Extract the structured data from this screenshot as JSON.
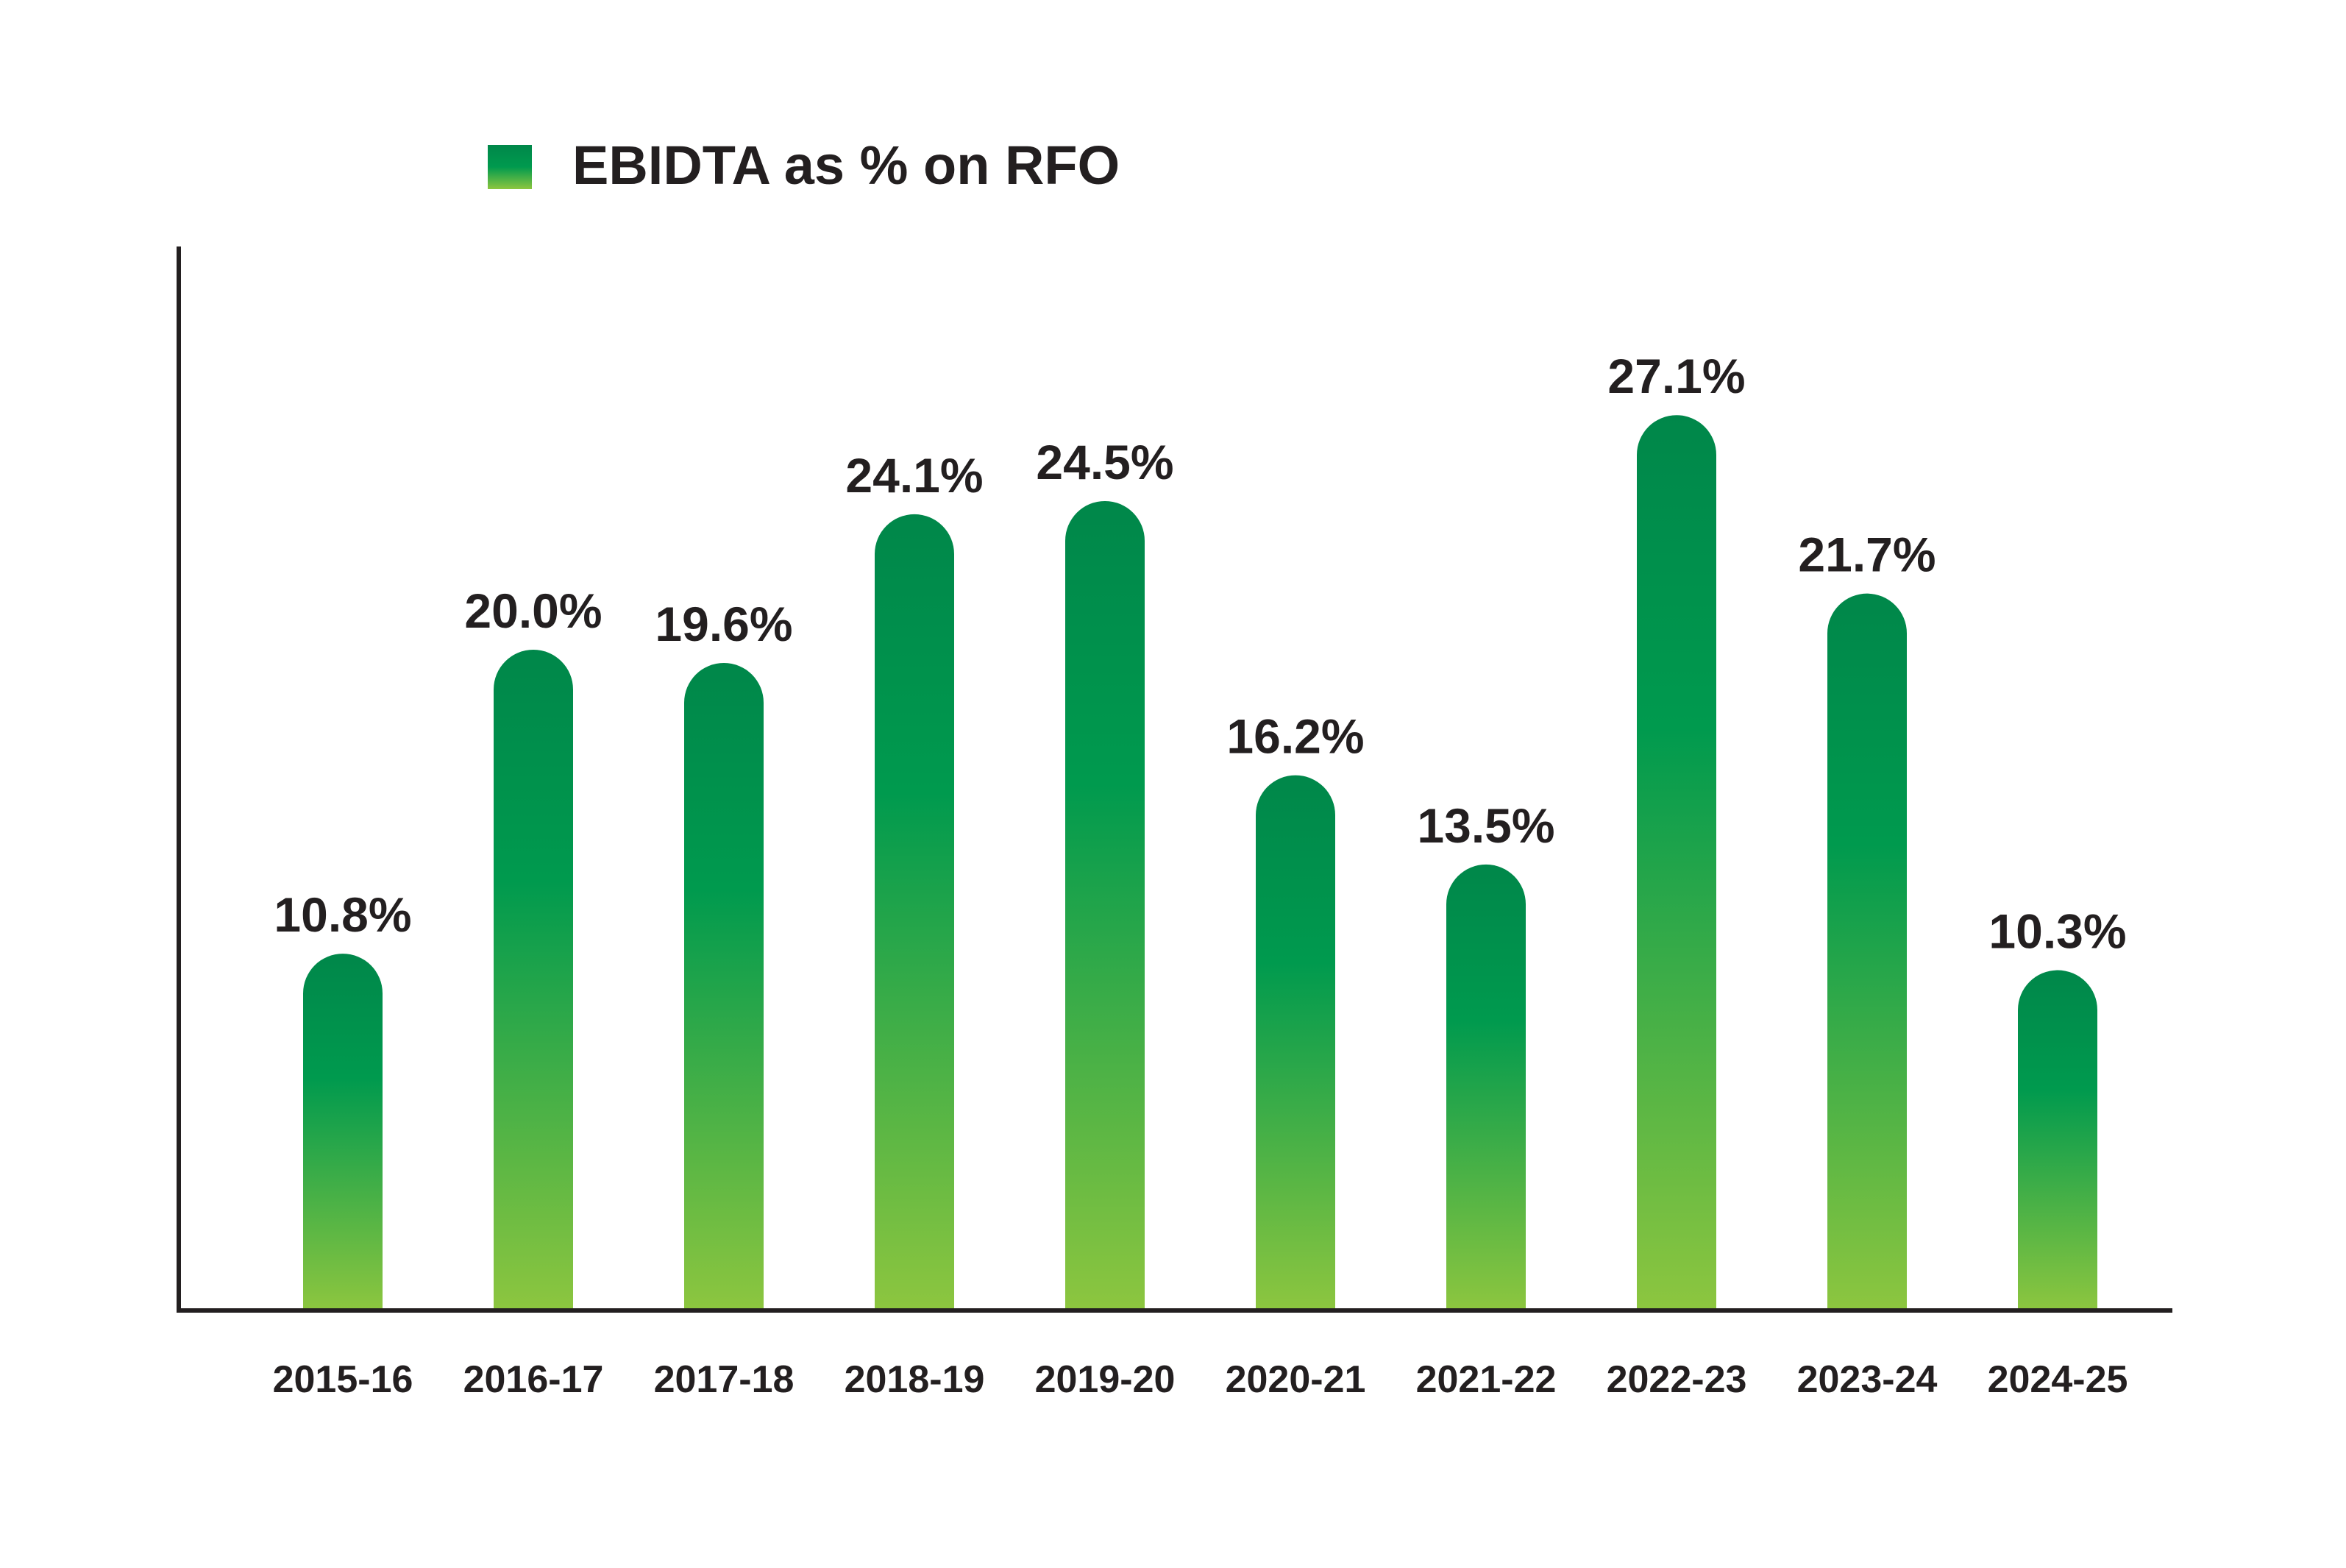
{
  "chart_data": {
    "type": "bar",
    "legend": {
      "label": "EBIDTA as % on RFO",
      "position": "top-left"
    },
    "categories": [
      "2015-16",
      "2016-17",
      "2017-18",
      "2018-19",
      "2019-20",
      "2020-21",
      "2021-22",
      "2022-23",
      "2023-24",
      "2024-25"
    ],
    "series": [
      {
        "name": "EBIDTA as % on RFO",
        "values": [
          10.8,
          20.0,
          19.6,
          24.1,
          24.5,
          16.2,
          13.5,
          27.1,
          21.7,
          10.3
        ],
        "labels": [
          "10.8%",
          "20.0%",
          "19.6%",
          "24.1%",
          "24.5%",
          "16.2%",
          "13.5%",
          "27.1%",
          "21.7%",
          "10.3%"
        ]
      }
    ],
    "ylim": [
      0,
      30
    ],
    "grid": false,
    "colors": {
      "bar_top": "#00874a",
      "bar_mid": "#009a4e",
      "bar_bottom": "#8dc63f",
      "axis": "#231f20",
      "text": "#231f20"
    }
  }
}
